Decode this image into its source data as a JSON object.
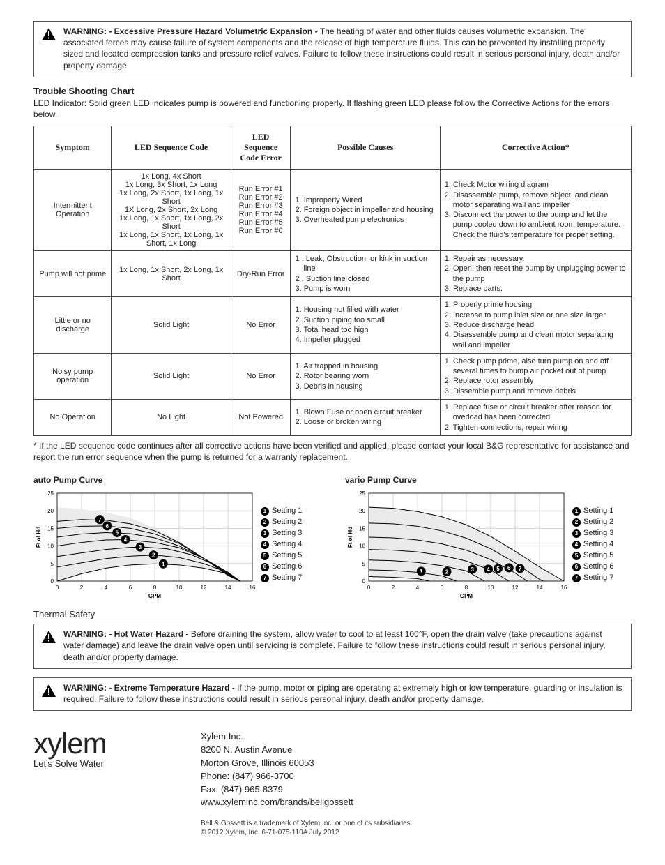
{
  "warnings": {
    "pressure": {
      "title": "WARNING: - Excessive Pressure Hazard Volumetric Expansion - ",
      "body": "The heating of water and other fluids causes volumetric expansion. The associated forces may cause failure of system components and the release of high temperature fluids. This can be prevented by installing properly sized and located compression tanks and pressure relief valves. Failure to follow these instructions could result in serious personal injury, death and/or property damage."
    },
    "hotwater": {
      "title": "WARNING: - Hot Water Hazard - ",
      "body": "Before draining the system, allow water to cool to at least 100°F, open the drain valve (take precautions against water damage) and leave the drain valve open until servicing is complete. Failure to follow these instructions could result in serious personal injury, death and/or property damage."
    },
    "extreme": {
      "title": "WARNING: - Extreme Temperature Hazard - ",
      "body": "If the pump, motor or piping are operating at extremely high or low temperature, guarding or insulation is required. Failure to follow these instructions could result in serious personal injury, death and/or property damage."
    }
  },
  "ts_heading": "Trouble Shooting Chart",
  "ts_intro": "LED Indicator:  Solid green LED indicates pump is powered and functioning properly. If flashing green LED please follow the Corrective Actions for the errors below.",
  "ts_cols": [
    "Symptom",
    "LED Sequence Code",
    "LED Sequence Code Error",
    "Possible Causes",
    "Corrective Action*"
  ],
  "ts_rows": [
    {
      "symptom": "Intermittent Operation",
      "seq": [
        "1x Long, 4x Short",
        "1x Long, 3x Short, 1x Long",
        "1x Long, 2x Short, 1x Long, 1x Short",
        "1X Long, 2x Short, 2x Long",
        "1x Long, 1x Short, 1x Long, 2x Short",
        "1x Long, 1x Short, 1x Long, 1x Short, 1x Long"
      ],
      "err": [
        "Run Error #1",
        "Run Error #2",
        "Run Error #3",
        "Run Error #4",
        "Run Error #5",
        "Run Error #6"
      ],
      "causes": [
        "1. Improperly Wired",
        "2. Foreign object in impeller and housing",
        "3. Overheated pump electronics"
      ],
      "actions": [
        "1.  Check Motor wiring diagram",
        "2.  Disassemble pump, remove object, and clean motor separating wall and impeller",
        "3.  Disconnect the power to the pump and let the pump cooled down to ambient room temperature. Check the fluid's temperature for proper setting."
      ]
    },
    {
      "symptom": "Pump will not prime",
      "seq": [
        "1x Long, 1x Short, 2x Long, 1x Short"
      ],
      "err": [
        "Dry-Run Error"
      ],
      "causes": [
        "1 . Leak, Obstruction, or kink in suction line",
        "2 . Suction line closed",
        "3.  Pump is worn"
      ],
      "actions": [
        "1. Repair as necessary.",
        "2. Open, then reset the pump by unplugging power to the pump",
        "3. Replace parts."
      ]
    },
    {
      "symptom": "Little or no discharge",
      "seq": [
        "Solid Light"
      ],
      "err": [
        "No Error"
      ],
      "causes": [
        "1.  Housing not filled with water",
        "2.  Suction piping too small",
        "3.  Total head too high",
        "4.  Impeller plugged"
      ],
      "actions": [
        "1.  Properly prime housing",
        "2.  Increase to pump inlet size or one size larger",
        "3.  Reduce discharge head",
        "4.  Disassemble pump and clean motor separating wall and impeller"
      ]
    },
    {
      "symptom": "Noisy pump operation",
      "seq": [
        "Solid Light"
      ],
      "err": [
        "No Error"
      ],
      "causes": [
        "1.  Air trapped in housing",
        "2.  Rotor bearing worn",
        "3.  Debris in housing"
      ],
      "actions": [
        "1. Check pump prime, also turn pump on and off several times to bump air pocket out of pump",
        "2. Replace rotor assembly",
        "3. Dissemble pump and remove debris"
      ]
    },
    {
      "symptom": "No Operation",
      "seq": [
        "No Light"
      ],
      "err": [
        "Not Powered"
      ],
      "causes": [
        "1.  Blown Fuse or open circuit breaker",
        "2.  Loose or broken wiring"
      ],
      "actions": [
        "1. Replace fuse or circuit breaker after reason for overload has been corrected",
        "2. Tighten connections, repair wiring"
      ]
    }
  ],
  "ts_footnote": "* If the LED sequence code continues after all corrective actions have been verified and applied, please contact your local B&G representative for assistance and report the run error sequence when the pump is returned for a warranty replacement.",
  "charts": {
    "auto": {
      "title": "auto Pump Curve",
      "xlabel": "GPM",
      "ylabel": "Ft of Hd",
      "xlim": [
        0,
        16
      ],
      "ylim": [
        0,
        25
      ],
      "xticks": [
        0,
        2,
        4,
        6,
        8,
        10,
        12,
        14,
        16
      ],
      "yticks": [
        0,
        5,
        10,
        15,
        20,
        25
      ],
      "label_fontsize": 8,
      "tick_fontsize": 8,
      "grid_color": "#d6d6d6",
      "background_color": "#ffffff",
      "fill_color": "#ebebeb",
      "line_color": "#000000",
      "line_width": 1,
      "top_curve": [
        [
          0,
          21
        ],
        [
          2,
          20.5
        ],
        [
          4,
          19.5
        ],
        [
          6,
          18
        ],
        [
          8,
          15
        ],
        [
          10,
          11.5
        ],
        [
          12,
          6.5
        ],
        [
          14,
          1.5
        ],
        [
          15,
          0
        ]
      ],
      "bottom_curve": [
        [
          0,
          0
        ],
        [
          2,
          2.1
        ],
        [
          4,
          3.7
        ],
        [
          6,
          4.6
        ],
        [
          8,
          4.9
        ],
        [
          10,
          4.6
        ],
        [
          12,
          3.7
        ],
        [
          14,
          2.1
        ],
        [
          15,
          0
        ]
      ],
      "series": [
        {
          "label": "Setting 1",
          "marker": [
            8.7,
            4.9
          ],
          "curve": [
            [
              0,
              0
            ],
            [
              2,
              2.1
            ],
            [
              4,
              3.7
            ],
            [
              6,
              4.6
            ],
            [
              8,
              4.9
            ],
            [
              10,
              4.6
            ],
            [
              12,
              3.7
            ],
            [
              14,
              2.1
            ],
            [
              15,
              0
            ]
          ]
        },
        {
          "label": "Setting 2",
          "marker": [
            7.9,
            7.4
          ],
          "curve": [
            [
              0,
              4
            ],
            [
              2,
              5.2
            ],
            [
              4,
              6.4
            ],
            [
              6,
              7.1
            ],
            [
              8,
              7.4
            ],
            [
              10,
              6.7
            ],
            [
              12,
              5
            ],
            [
              14,
              2.5
            ],
            [
              15,
              0
            ]
          ]
        },
        {
          "label": "Setting 3",
          "marker": [
            6.8,
            9.7
          ],
          "curve": [
            [
              0,
              7
            ],
            [
              2,
              8
            ],
            [
              4,
              9
            ],
            [
              6,
              9.6
            ],
            [
              7,
              9.7
            ],
            [
              9,
              9.2
            ],
            [
              11,
              7.5
            ],
            [
              13,
              4.5
            ],
            [
              15,
              0
            ]
          ]
        },
        {
          "label": "Setting 4",
          "marker": [
            5.6,
            11.8
          ],
          "curve": [
            [
              0,
              10
            ],
            [
              2,
              11
            ],
            [
              4,
              11.7
            ],
            [
              5.5,
              11.8
            ],
            [
              8,
              11
            ],
            [
              10,
              9.5
            ],
            [
              12,
              6.5
            ],
            [
              14,
              2.5
            ],
            [
              15,
              0
            ]
          ]
        },
        {
          "label": "Setting 5",
          "marker": [
            4.9,
            13.8
          ],
          "curve": [
            [
              0,
              12.5
            ],
            [
              2,
              13.4
            ],
            [
              4,
              13.8
            ],
            [
              6,
              13.5
            ],
            [
              8,
              12.3
            ],
            [
              10,
              10
            ],
            [
              12,
              6.5
            ],
            [
              14,
              2
            ],
            [
              15,
              0
            ]
          ]
        },
        {
          "label": "Setting 6",
          "marker": [
            4.1,
            15.7
          ],
          "curve": [
            [
              0,
              15
            ],
            [
              2,
              15.6
            ],
            [
              4,
              15.7
            ],
            [
              6,
              15
            ],
            [
              8,
              13.4
            ],
            [
              10,
              10.7
            ],
            [
              12,
              6.5
            ],
            [
              14,
              1.8
            ],
            [
              15,
              0
            ]
          ]
        },
        {
          "label": "Setting 7",
          "marker": [
            3.5,
            17.5
          ],
          "curve": [
            [
              0,
              17
            ],
            [
              2,
              17.5
            ],
            [
              4,
              17.3
            ],
            [
              6,
              16.3
            ],
            [
              8,
              14.3
            ],
            [
              10,
              11
            ],
            [
              12,
              6.5
            ],
            [
              14,
              1.6
            ],
            [
              15,
              0
            ]
          ]
        }
      ]
    },
    "vario": {
      "title": "vario Pump Curve",
      "xlabel": "GPM",
      "ylabel": "Ft of Hd",
      "xlim": [
        0,
        16
      ],
      "ylim": [
        0,
        25
      ],
      "xticks": [
        0,
        2,
        4,
        6,
        8,
        10,
        12,
        14,
        16
      ],
      "yticks": [
        0,
        5,
        10,
        15,
        20,
        25
      ],
      "label_fontsize": 8,
      "tick_fontsize": 8,
      "grid_color": "#d6d6d6",
      "background_color": "#ffffff",
      "fill_color": "#ebebeb",
      "line_color": "#000000",
      "line_width": 1,
      "top_curve": [
        [
          0,
          21
        ],
        [
          2,
          20.7
        ],
        [
          4,
          19.8
        ],
        [
          6,
          18.3
        ],
        [
          8,
          16
        ],
        [
          10,
          12.7
        ],
        [
          12,
          8.5
        ],
        [
          14,
          4
        ],
        [
          16,
          0
        ]
      ],
      "bottom_curve": [
        [
          0,
          1.3
        ],
        [
          2,
          1.1
        ],
        [
          4,
          0.7
        ],
        [
          5,
          0
        ]
      ],
      "series": [
        {
          "label": "Setting 1",
          "marker": [
            4.3,
            2.8
          ],
          "curve": [
            [
              0,
              1.3
            ],
            [
              2,
              1.1
            ],
            [
              4,
              0.7
            ],
            [
              5,
              0
            ]
          ]
        },
        {
          "label": "Setting 2",
          "marker": [
            6.4,
            2.7
          ],
          "curve": [
            [
              0,
              3.2
            ],
            [
              2,
              3
            ],
            [
              4,
              2.5
            ],
            [
              6,
              1.5
            ],
            [
              7.2,
              0
            ]
          ]
        },
        {
          "label": "Setting 3",
          "marker": [
            8.5,
            3.4
          ],
          "curve": [
            [
              0,
              6
            ],
            [
              2,
              5.8
            ],
            [
              4,
              5.3
            ],
            [
              6,
              4.4
            ],
            [
              8,
              2.9
            ],
            [
              9.5,
              0
            ]
          ]
        },
        {
          "label": "Setting 4",
          "marker": [
            9.8,
            3.4
          ],
          "curve": [
            [
              0,
              9
            ],
            [
              2,
              8.8
            ],
            [
              4,
              8.3
            ],
            [
              6,
              7.3
            ],
            [
              8,
              5.7
            ],
            [
              10,
              3.1
            ],
            [
              11.5,
              0
            ]
          ]
        },
        {
          "label": "Setting 5",
          "marker": [
            10.6,
            3.6
          ],
          "curve": [
            [
              0,
              12.5
            ],
            [
              2,
              12.3
            ],
            [
              4,
              11.7
            ],
            [
              6,
              10.6
            ],
            [
              8,
              8.8
            ],
            [
              10,
              6.1
            ],
            [
              12,
              2.3
            ],
            [
              13,
              0
            ]
          ]
        },
        {
          "label": "Setting 6",
          "marker": [
            11.5,
            3.8
          ],
          "curve": [
            [
              0,
              16.5
            ],
            [
              2,
              16.3
            ],
            [
              4,
              15.6
            ],
            [
              6,
              14.3
            ],
            [
              8,
              12.2
            ],
            [
              10,
              9.2
            ],
            [
              12,
              5.2
            ],
            [
              14,
              0.5
            ],
            [
              14.3,
              0
            ]
          ]
        },
        {
          "label": "Setting 7",
          "marker": [
            12.4,
            3.6
          ],
          "curve": [
            [
              0,
              21
            ],
            [
              2,
              20.7
            ],
            [
              4,
              19.8
            ],
            [
              6,
              18.3
            ],
            [
              8,
              16
            ],
            [
              10,
              12.7
            ],
            [
              12,
              8.5
            ],
            [
              14,
              4
            ],
            [
              16,
              0
            ]
          ]
        }
      ]
    }
  },
  "thermal_heading": "Thermal Safety",
  "company": {
    "logo": "xylem",
    "tag": "Let's Solve Water",
    "name": "Xylem Inc.",
    "addr1": "8200 N. Austin Avenue",
    "addr2": "Morton Grove, Illinois 60053",
    "phone": "Phone: (847) 966-3700",
    "fax": "Fax: (847) 965-8379",
    "url": "www.xyleminc.com/brands/bellgossett",
    "fine1": "Bell & Gossett is a trademark of Xylem Inc. or one of its subsidiaries.",
    "fine2": "© 2012 Xylem, Inc.    6-71-075-110A    July 2012"
  }
}
